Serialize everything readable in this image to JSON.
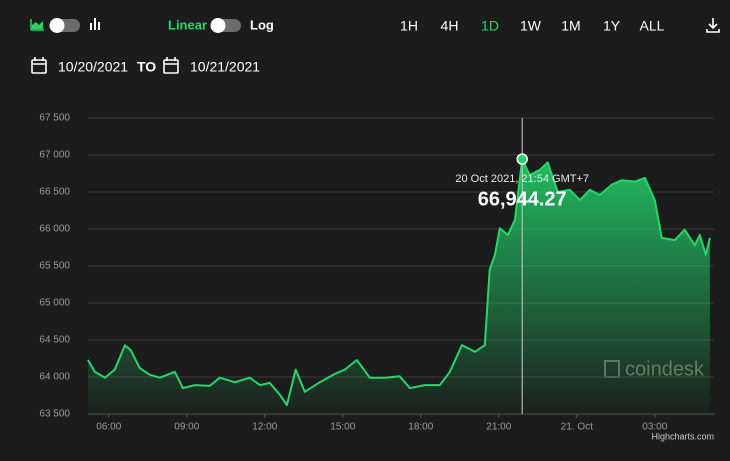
{
  "ui": {
    "scale_linear": "Linear",
    "scale_log": "Log",
    "log_scale": false,
    "ranges": [
      "1H",
      "4H",
      "1D",
      "1W",
      "1M",
      "1Y",
      "ALL"
    ],
    "active_range": 2,
    "date_from": "10/20/2021",
    "date_sep": "TO",
    "date_to": "10/21/2021",
    "watermark": "coindesk",
    "credit": "Highcharts.com"
  },
  "chart_data": {
    "type": "area",
    "color": "#22d86b",
    "grid": true,
    "x": [
      5.2,
      5.46,
      5.85,
      6.23,
      6.62,
      6.85,
      7.19,
      7.58,
      7.96,
      8.54,
      8.85,
      9.31,
      9.88,
      10.27,
      10.85,
      11.42,
      11.81,
      12.19,
      12.58,
      12.85,
      13.19,
      13.54,
      14.12,
      14.69,
      15.08,
      15.54,
      16.04,
      16.62,
      17.19,
      17.58,
      18.15,
      18.73,
      19.12,
      19.58,
      20.08,
      20.46,
      20.65,
      20.85,
      21.04,
      21.35,
      21.62,
      21.9,
      22.19,
      22.58,
      22.88,
      23.27,
      23.73,
      24.12,
      24.5,
      24.88,
      25.35,
      25.73,
      26.23,
      26.62,
      27.0,
      27.27,
      27.77,
      28.15,
      28.54,
      28.73,
      28.96,
      29.12
    ],
    "values": [
      64230,
      64070,
      63990,
      64100,
      64430,
      64360,
      64120,
      64030,
      63990,
      64070,
      63850,
      63890,
      63880,
      63990,
      63930,
      63990,
      63890,
      63920,
      63760,
      63620,
      64100,
      63800,
      63930,
      64040,
      64100,
      64230,
      63990,
      63990,
      64010,
      63850,
      63890,
      63890,
      64070,
      64430,
      64340,
      64430,
      65450,
      65650,
      66010,
      65920,
      66120,
      66944.27,
      66730,
      66800,
      66900,
      66500,
      66530,
      66390,
      66530,
      66460,
      66600,
      66660,
      66640,
      66690,
      66390,
      65880,
      65850,
      65990,
      65780,
      65920,
      65650,
      65880
    ],
    "xlim": [
      5.2,
      29.2
    ],
    "xticks": [
      {
        "value": 6,
        "label": "06:00"
      },
      {
        "value": 9,
        "label": "09:00"
      },
      {
        "value": 12,
        "label": "12:00"
      },
      {
        "value": 15,
        "label": "15:00"
      },
      {
        "value": 18,
        "label": "18:00"
      },
      {
        "value": 21,
        "label": "21:00"
      },
      {
        "value": 24,
        "label": "21. Oct"
      },
      {
        "value": 27,
        "label": "03:00"
      }
    ],
    "ylim": [
      63500,
      67500
    ],
    "yticks": [
      {
        "value": 63500,
        "label": "63 500"
      },
      {
        "value": 64000,
        "label": "64 000"
      },
      {
        "value": 64500,
        "label": "64 500"
      },
      {
        "value": 65000,
        "label": "65 000"
      },
      {
        "value": 65500,
        "label": "65 500"
      },
      {
        "value": 66000,
        "label": "66 000"
      },
      {
        "value": 66500,
        "label": "66 500"
      },
      {
        "value": 67000,
        "label": "67 000"
      },
      {
        "value": 67500,
        "label": "67 500"
      }
    ],
    "tooltip": {
      "x": 21.9,
      "label": "20 Oct 2021, 21:54 GMT+7",
      "value": 66944.27,
      "value_label": "66,944.27"
    }
  }
}
